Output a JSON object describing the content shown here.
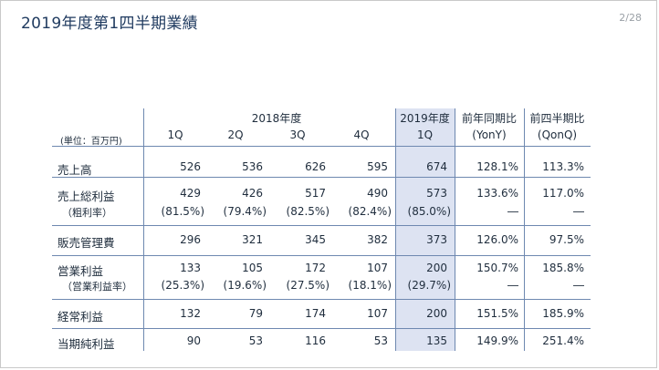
{
  "slide": {
    "title": "2019年度第1四半期業績",
    "page": "2/28"
  },
  "table": {
    "unit_label": "(単位：百万円)",
    "group_2018": "2018年度",
    "group_2019": "2019年度",
    "col_yony_head": "前年同期比",
    "col_qonq_head": "前四半期比",
    "col_yony_sub": "(YonY)",
    "col_qonq_sub": "(QonQ)",
    "quarters": [
      "1Q",
      "2Q",
      "3Q",
      "4Q",
      "1Q"
    ],
    "rows": {
      "sales": {
        "label": "売上高",
        "values": [
          "526",
          "536",
          "626",
          "595",
          "674",
          "128.1%",
          "113.3%"
        ]
      },
      "gross_profit": {
        "label": "売上総利益",
        "values": [
          "429",
          "426",
          "517",
          "490",
          "573",
          "133.6%",
          "117.0%"
        ]
      },
      "gross_margin": {
        "label": "（粗利率）",
        "values": [
          "(81.5%)",
          "(79.4%)",
          "(82.5%)",
          "(82.4%)",
          "(85.0%)",
          "―",
          "―"
        ]
      },
      "sga": {
        "label": "販売管理費",
        "values": [
          "296",
          "321",
          "345",
          "382",
          "373",
          "126.0%",
          "97.5%"
        ]
      },
      "operating_profit": {
        "label": "営業利益",
        "values": [
          "133",
          "105",
          "172",
          "107",
          "200",
          "150.7%",
          "185.8%"
        ]
      },
      "operating_margin": {
        "label": "（営業利益率）",
        "values": [
          "(25.3%)",
          "(19.6%)",
          "(27.5%)",
          "(18.1%)",
          "(29.7%)",
          "―",
          "―"
        ]
      },
      "ordinary_profit": {
        "label": "経常利益",
        "values": [
          "132",
          "79",
          "174",
          "107",
          "200",
          "151.5%",
          "185.9%"
        ]
      },
      "net_profit": {
        "label": "当期純利益",
        "values": [
          "90",
          "53",
          "116",
          "53",
          "135",
          "149.9%",
          "251.4%"
        ]
      }
    }
  }
}
